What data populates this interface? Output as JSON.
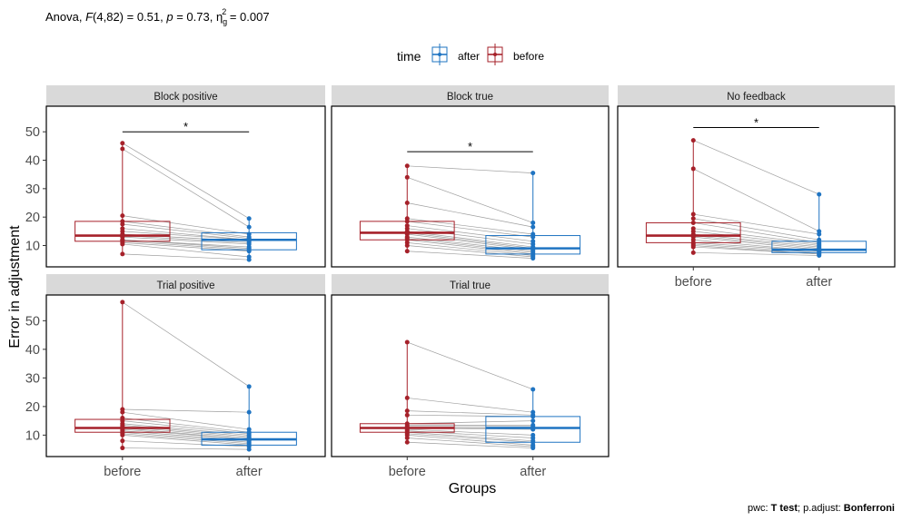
{
  "title": {
    "prefix": "Anova, ",
    "stat_name": "F",
    "df": "(4,82) = 0.51, ",
    "p_name": "p",
    "p_value": " = 0.73, ",
    "eta": "η",
    "eta_sub": "g",
    "eta_sup": "2",
    "eta_value": " = 0.007"
  },
  "legend": {
    "title": "time",
    "items": [
      {
        "label": "after",
        "color": "#1F74C2"
      },
      {
        "label": "before",
        "color": "#A6212A"
      }
    ]
  },
  "caption": {
    "prefix": "pwc: ",
    "test": "T test",
    "mid": "; p.adjust: ",
    "method": "Bonferroni"
  },
  "colors": {
    "before": "#A6212A",
    "after": "#1F74C2",
    "pair_line": "#9e9e9e",
    "strip_bg": "#d9d9d9"
  },
  "chart_data": {
    "type": "boxplot",
    "xlabel": "Groups",
    "ylabel": "Error in adjustment",
    "categories": [
      "before",
      "after"
    ],
    "y_ticks": [
      10,
      20,
      30,
      40,
      50
    ],
    "ylim": [
      2.5,
      59
    ],
    "panels": [
      {
        "name": "Block positive",
        "significance": {
          "label": "*",
          "y": 50
        },
        "before": {
          "q1": 11.5,
          "median": 13.5,
          "q3": 18.5,
          "points": [
            46,
            44,
            20.5,
            18.5,
            17.5,
            16,
            15,
            14,
            13.5,
            13,
            12,
            12,
            11.5,
            11,
            10.5,
            7
          ]
        },
        "after": {
          "q1": 8.5,
          "median": 12,
          "q3": 14.5,
          "points": [
            19.5,
            16.5,
            14,
            13,
            12.5,
            12,
            12,
            11.5,
            11,
            10.5,
            9.5,
            9,
            8.5,
            8,
            6,
            5
          ]
        }
      },
      {
        "name": "Block true",
        "significance": {
          "label": "*",
          "y": 43
        },
        "before": {
          "q1": 12,
          "median": 14.5,
          "q3": 18.5,
          "points": [
            38,
            34,
            25,
            19.5,
            18.5,
            17,
            16,
            15,
            14.5,
            14,
            13,
            12.5,
            12,
            11,
            10,
            8
          ]
        },
        "after": {
          "q1": 7,
          "median": 9,
          "q3": 13.5,
          "points": [
            35.5,
            18,
            16.5,
            14,
            13,
            11.5,
            10.5,
            9.5,
            9,
            8.5,
            8,
            7.5,
            7,
            6.5,
            6,
            5.5
          ]
        }
      },
      {
        "name": "No feedback",
        "significance": {
          "label": "*",
          "y": 51.5
        },
        "before": {
          "q1": 11,
          "median": 13.5,
          "q3": 18,
          "points": [
            47,
            37,
            21,
            19.5,
            18,
            16,
            15,
            14,
            13.5,
            13,
            12,
            11,
            10.5,
            10,
            9.5,
            7.5
          ]
        },
        "after": {
          "q1": 7.5,
          "median": 8.5,
          "q3": 11.5,
          "points": [
            28,
            15,
            14,
            12,
            11,
            10.5,
            10,
            9.5,
            9,
            8.5,
            8,
            8,
            7.5,
            7,
            7,
            6.5
          ]
        }
      },
      {
        "name": "Trial positive",
        "significance": null,
        "before": {
          "q1": 11,
          "median": 12.5,
          "q3": 15.5,
          "points": [
            56.5,
            19,
            18,
            16,
            15,
            14,
            13.5,
            13,
            12.5,
            12,
            11.5,
            11,
            10.5,
            10,
            8,
            5.5
          ]
        },
        "after": {
          "q1": 6.5,
          "median": 8.5,
          "q3": 11,
          "points": [
            27,
            18,
            12,
            11,
            10.5,
            10,
            9.5,
            9,
            8.5,
            8.5,
            8,
            7.5,
            7,
            6.5,
            6,
            5
          ]
        }
      },
      {
        "name": "Trial true",
        "significance": null,
        "before": {
          "q1": 11,
          "median": 12.5,
          "q3": 14,
          "points": [
            42.5,
            23,
            18.5,
            17,
            14,
            13.5,
            13,
            12.5,
            12.5,
            12,
            11.5,
            11,
            10.5,
            10,
            9,
            7.5
          ]
        },
        "after": {
          "q1": 7.5,
          "median": 12.5,
          "q3": 16.5,
          "points": [
            26,
            18,
            17,
            16.5,
            15,
            13.5,
            13,
            12.5,
            12,
            10,
            9,
            8,
            7.5,
            6.5,
            6,
            5.5
          ]
        }
      }
    ]
  }
}
